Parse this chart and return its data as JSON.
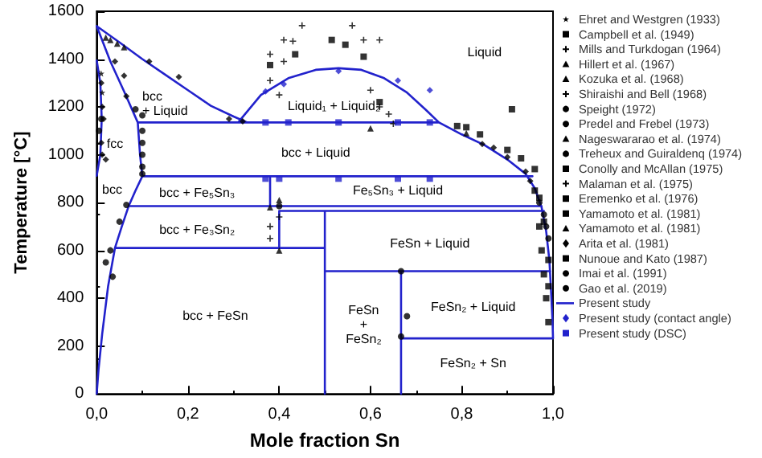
{
  "chart_data": {
    "type": "scatter",
    "xlabel": "Mole fraction Sn",
    "ylabel": "Temperature [°C]",
    "xlim": [
      0,
      1
    ],
    "xticks": [
      {
        "value": 0,
        "label": "0,0"
      },
      {
        "value": 0.2,
        "label": "0,2"
      },
      {
        "value": 0.4,
        "label": "0,4"
      },
      {
        "value": 0.6,
        "label": "0,6"
      },
      {
        "value": 0.8,
        "label": "0,8"
      },
      {
        "value": 1,
        "label": "1,0"
      }
    ],
    "ylim": [
      0,
      1600
    ],
    "yticks": [
      0,
      200,
      400,
      600,
      800,
      1000,
      1200,
      1400,
      1600
    ],
    "grid": false,
    "legend": "right",
    "series": [
      {
        "name": "Ehret and Westgren (1933)",
        "color": "#000000",
        "marker": "star",
        "x": [
          0.01,
          0.012
        ],
        "values": [
          1340,
          1260
        ]
      },
      {
        "name": "Campbell et al. (1949)",
        "color": "#000000",
        "marker": "square",
        "x": [
          0.79,
          0.81,
          0.84,
          0.9,
          0.93,
          0.96
        ],
        "values": [
          1120,
          1115,
          1085,
          1020,
          985,
          940
        ]
      },
      {
        "name": "Mills and Turkdogan (1964)",
        "color": "#000000",
        "marker": "cross",
        "x": [
          0.38,
          0.43,
          0.45,
          0.56,
          0.585,
          0.6,
          0.64,
          0.4
        ],
        "values": [
          1420,
          1475,
          1540,
          1540,
          1480,
          1270,
          1170,
          1250
        ]
      },
      {
        "name": "Hillert et al. (1967)",
        "color": "#000000",
        "marker": "triangle",
        "x": [
          0.4
        ],
        "values": [
          600
        ]
      },
      {
        "name": "Kozuka et al. (1968)",
        "color": "#000000",
        "marker": "triangle",
        "x": [
          0.6,
          0.81
        ],
        "values": [
          1110,
          1090
        ]
      },
      {
        "name": "Shiraishi and Bell (1968)",
        "color": "#000000",
        "marker": "cross",
        "x": [
          0.41,
          0.41,
          0.62,
          0.62,
          0.65,
          0.38
        ],
        "values": [
          1480,
          1390,
          1480,
          1200,
          1130,
          1310
        ]
      },
      {
        "name": "Speight (1972)",
        "color": "#000000",
        "marker": "circle",
        "x": [
          0.1,
          0.1,
          0.1,
          0.1,
          0.1,
          0.1,
          0.085
        ],
        "values": [
          1165,
          1100,
          1050,
          1000,
          950,
          920,
          1190
        ]
      },
      {
        "name": "Predel and Frebel (1973)",
        "color": "#000000",
        "marker": "circle",
        "x": [
          0.065,
          0.05,
          0.03,
          0.02,
          0.035
        ],
        "values": [
          790,
          720,
          600,
          550,
          490
        ]
      },
      {
        "name": "Nageswararao et al. (1974)",
        "color": "#000000",
        "marker": "triangle",
        "x": [
          0.02,
          0.03,
          0.045,
          0.06
        ],
        "values": [
          1490,
          1480,
          1465,
          1450
        ]
      },
      {
        "name": "Treheux and Guiraldenq (1974)",
        "color": "#000000",
        "marker": "circle",
        "x": [
          0.01,
          0.005
        ],
        "values": [
          1150,
          1100
        ]
      },
      {
        "name": "Conolly and McAllan (1975)",
        "color": "#000000",
        "marker": "square",
        "x": [
          0.97,
          0.98
        ],
        "values": [
          820,
          720
        ]
      },
      {
        "name": "Malaman et al. (1975)",
        "color": "#000000",
        "marker": "cross",
        "x": [
          0.38,
          0.38,
          0.4
        ],
        "values": [
          700,
          650,
          740
        ]
      },
      {
        "name": "Eremenko et al. (1976)",
        "color": "#000000",
        "marker": "square",
        "x": [
          0.91,
          0.96,
          0.97,
          0.975,
          0.98,
          0.985,
          0.99
        ],
        "values": [
          1190,
          850,
          700,
          600,
          500,
          400,
          300
        ]
      },
      {
        "name": "Yamamoto et al. (1981)",
        "color": "#000000",
        "marker": "square",
        "x": [
          0.99,
          0.99
        ],
        "values": [
          560,
          450
        ]
      },
      {
        "name": "Yamamoto et al. (1981)",
        "color": "#000000",
        "marker": "triangle",
        "x": [
          0.38,
          0.4
        ],
        "values": [
          780,
          810
        ]
      },
      {
        "name": "Arita et al. (1981)",
        "color": "#000000",
        "marker": "diamond",
        "x": [
          0.01,
          0.012,
          0.015,
          0.01,
          0.012,
          0.02,
          0.04,
          0.115,
          0.18,
          0.06,
          0.065,
          0.29,
          0.32,
          0.845,
          0.87,
          0.9,
          0.94,
          0.95
        ],
        "values": [
          1300,
          1200,
          1150,
          1050,
          1000,
          980,
          1390,
          1390,
          1325,
          1330,
          1245,
          1150,
          1140,
          1045,
          1030,
          990,
          930,
          890
        ]
      },
      {
        "name": "Nunoue and Kato (1987)",
        "color": "#000000",
        "marker": "square",
        "x": [
          0.515,
          0.545,
          0.435,
          0.585,
          0.38,
          0.62
        ],
        "values": [
          1480,
          1460,
          1420,
          1410,
          1375,
          1220
        ]
      },
      {
        "name": "Imai et al. (1991)",
        "color": "#000000",
        "marker": "circle",
        "x": [
          0.97,
          0.98,
          0.985,
          0.99
        ],
        "values": [
          800,
          750,
          700,
          650
        ]
      },
      {
        "name": "Gao et al. (2019)",
        "color": "#000000",
        "marker": "circle",
        "x": [
          0.68,
          0.667,
          0.667,
          0.4
        ],
        "values": [
          325,
          513,
          240,
          785
        ]
      },
      {
        "name": "Present study",
        "type": "line",
        "color": "#2222cc",
        "marker": "none",
        "line_style": "solid",
        "x": [
          0,
          0.05,
          0.1,
          0.15,
          0.2,
          0.25,
          0.3,
          0.33,
          null,
          0,
          0.03,
          0.06,
          0.09,
          0.095,
          0.1,
          0.085,
          0.07,
          0.055,
          0.04,
          0.025,
          0.012,
          0.004,
          0,
          null,
          0,
          0.008,
          0.011,
          0.008,
          0,
          null,
          0.31,
          0.36,
          0.42,
          0.48,
          0.53,
          0.58,
          0.63,
          0.68,
          0.72,
          0.75,
          0.8,
          0.85,
          0.9,
          0.94,
          0.96,
          0.975,
          0.985,
          0.992,
          0.996,
          0.999,
          1,
          null,
          0.09,
          0.75,
          null,
          0.1,
          0.955,
          null,
          0.38,
          0.38,
          null,
          0.07,
          0.975,
          null,
          0.4,
          0.98,
          null,
          0.4,
          0.4,
          null,
          0.04,
          0.5,
          null,
          0.5,
          0.5,
          null,
          0.5,
          0.994,
          null,
          0.667,
          0.667,
          null,
          0.667,
          1
        ],
        "values": [
          1538,
          1470,
          1400,
          1335,
          1270,
          1205,
          1160,
          1135,
          null,
          1538,
          1390,
          1265,
          1135,
          1000,
          910,
          850,
          785,
          700,
          610,
          450,
          250,
          100,
          0,
          null,
          1394,
          1300,
          1150,
          1000,
          912,
          null,
          1135,
          1250,
          1320,
          1355,
          1362,
          1355,
          1320,
          1260,
          1190,
          1135,
          1085,
          1040,
          980,
          920,
          860,
          780,
          680,
          560,
          420,
          300,
          232,
          null,
          1135,
          1135,
          null,
          910,
          910,
          null,
          910,
          785,
          null,
          785,
          785,
          null,
          765,
          765,
          null,
          765,
          610,
          null,
          610,
          610,
          null,
          765,
          0,
          null,
          513,
          513,
          null,
          513,
          0,
          null,
          232,
          232
        ]
      },
      {
        "name": "Present study (contact angle)",
        "color": "#2222cc",
        "marker": "diamond",
        "x": [
          0.37,
          0.41,
          0.53,
          0.66,
          0.73
        ],
        "values": [
          1265,
          1295,
          1350,
          1310,
          1270
        ]
      },
      {
        "name": "Present study (DSC)",
        "color": "#2222cc",
        "marker": "square",
        "x": [
          0.37,
          0.42,
          0.53,
          0.66,
          0.73,
          0.37,
          0.4,
          0.53,
          0.66,
          0.73
        ],
        "values": [
          1135,
          1135,
          1135,
          1135,
          1135,
          900,
          900,
          900,
          900,
          900
        ]
      }
    ],
    "annotations": [
      "Liquid",
      "bcc\n+ Liquid",
      "fcc",
      "bcc",
      "Liquid₁ + Liquid₂",
      "bcc + Liquid",
      "bcc + Fe₅Sn₃",
      "Fe₅Sn₃ + Liquid",
      "bcc + Fe₃Sn₂",
      "bcc + FeSn",
      "FeSn + Liquid",
      "FeSn\n+\nFeSn₂",
      "FeSn₂ + Liquid",
      "FeSn₂ + Sn"
    ]
  }
}
